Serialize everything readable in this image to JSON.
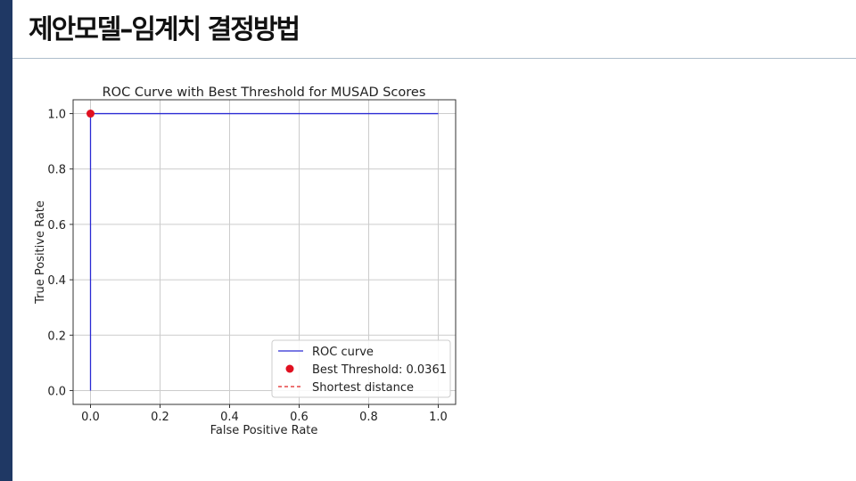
{
  "slide": {
    "title": "제안모델–임계치 결정방법",
    "accent_color": "#1f3864"
  },
  "chart_data": {
    "type": "line",
    "title": "ROC Curve with Best Threshold for MUSAD Scores",
    "xlabel": "False Positive Rate",
    "ylabel": "True Positive Rate",
    "xlim": [
      -0.05,
      1.05
    ],
    "ylim": [
      -0.05,
      1.05
    ],
    "xticks": [
      0.0,
      0.2,
      0.4,
      0.6,
      0.8,
      1.0
    ],
    "yticks": [
      0.0,
      0.2,
      0.4,
      0.6,
      0.8,
      1.0
    ],
    "xtick_labels": [
      "0.0",
      "0.2",
      "0.4",
      "0.6",
      "0.8",
      "1.0"
    ],
    "ytick_labels": [
      "0.0",
      "0.2",
      "0.4",
      "0.6",
      "0.8",
      "1.0"
    ],
    "grid": true,
    "legend_position": "lower-right",
    "series": [
      {
        "name": "ROC curve",
        "type": "line",
        "color": "#2b2bd4",
        "x": [
          0.0,
          0.0,
          1.0
        ],
        "y": [
          0.0,
          1.0,
          1.0
        ]
      },
      {
        "name": "Best Threshold: 0.0361",
        "type": "scatter",
        "color": "#e01020",
        "x": [
          0.0
        ],
        "y": [
          1.0
        ]
      },
      {
        "name": "Shortest distance",
        "type": "dashed-line",
        "color": "#e02020",
        "x": [
          0.0,
          0.0
        ],
        "y": [
          1.0,
          1.0
        ]
      }
    ]
  }
}
